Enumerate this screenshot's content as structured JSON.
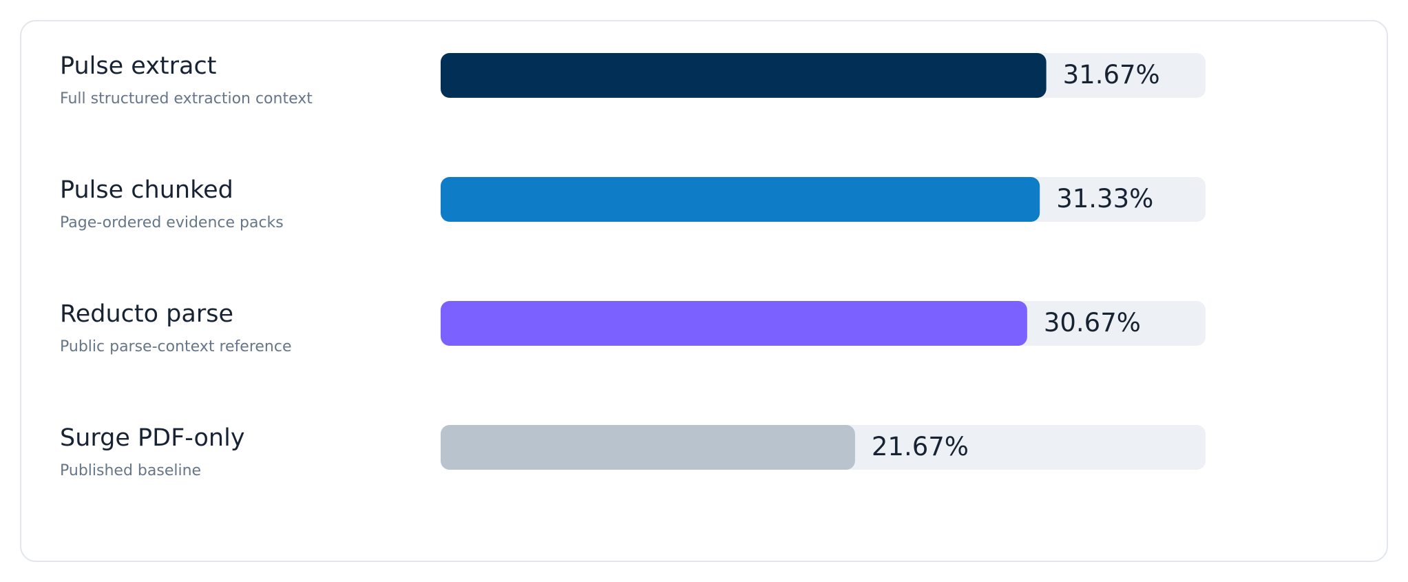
{
  "chart_data": {
    "type": "hbar",
    "categories": [
      "Pulse extract",
      "Pulse chunked",
      "Reducto parse",
      "Surge PDF-only"
    ],
    "subtitles": [
      "Full structured extraction context",
      "Page-ordered evidence packs",
      "Public parse-context reference",
      "Published baseline"
    ],
    "values": [
      31.67,
      31.33,
      30.67,
      21.67
    ],
    "value_labels": [
      "31.67%",
      "31.33%",
      "30.67%",
      "21.67%"
    ],
    "colors": [
      "#022f56",
      "#0e7cc7",
      "#7b61ff",
      "#b8c3cd"
    ],
    "track_color": "#edf1f5",
    "xlim": [
      0,
      40
    ]
  }
}
